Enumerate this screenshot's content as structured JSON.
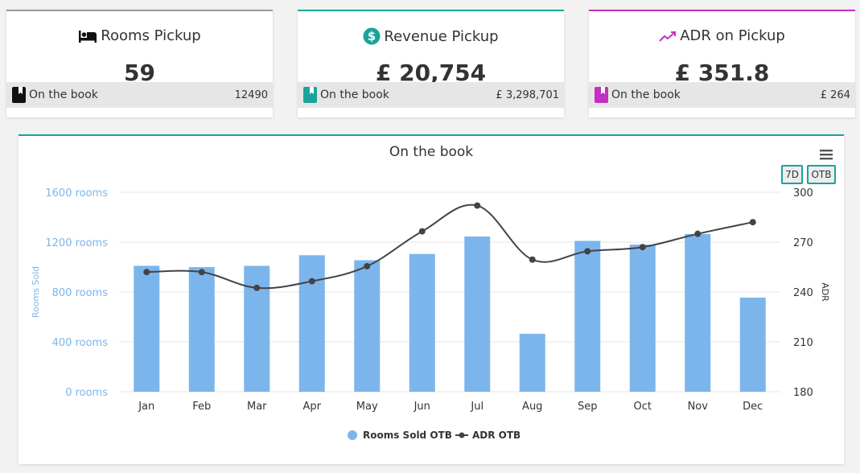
{
  "cards": [
    {
      "title": "Rooms Pickup",
      "icon": "bed-icon",
      "value": "59",
      "foot_label": "On the book",
      "foot_value": "12490",
      "accent": "#999999",
      "book_color": "#111111"
    },
    {
      "title": "Revenue Pickup",
      "icon": "dollar-circle-icon",
      "value": "£ 20,754",
      "foot_label": "On the book",
      "foot_value": "£ 3,298,701",
      "accent": "#1aa39a",
      "book_color": "#1aa39a"
    },
    {
      "title": "ADR on Pickup",
      "icon": "trend-line-icon",
      "value": "£ 351.8",
      "foot_label": "On the book",
      "foot_value": "£ 264",
      "accent": "#c42fc4",
      "book_color": "#c42fc4"
    }
  ],
  "buttons": {
    "d7": "7D",
    "otb": "OTB"
  },
  "chart_data": {
    "type": "bar",
    "title": "On the book",
    "categories": [
      "Jan",
      "Feb",
      "Mar",
      "Apr",
      "May",
      "Jun",
      "Jul",
      "Aug",
      "Sep",
      "Oct",
      "Nov",
      "Dec"
    ],
    "series": [
      {
        "name": "Rooms Sold OTB",
        "type": "bar",
        "axis": "left",
        "color": "#7cb5ec",
        "values": [
          1010,
          1000,
          1010,
          1095,
          1055,
          1105,
          1245,
          465,
          1210,
          1180,
          1265,
          755
        ]
      },
      {
        "name": "ADR OTB",
        "type": "line",
        "axis": "right",
        "color": "#434348",
        "values": [
          252,
          252,
          242.5,
          246.5,
          255.5,
          276.5,
          292,
          259.5,
          264.5,
          267,
          275,
          282
        ]
      }
    ],
    "left_axis": {
      "label": "Rooms Sold",
      "range": [
        0,
        1600
      ],
      "ticks": [
        0,
        400,
        800,
        1200,
        1600
      ],
      "tick_suffix": " rooms",
      "color": "#7cb5ec"
    },
    "right_axis": {
      "label": "ADR",
      "range": [
        180,
        300
      ],
      "ticks": [
        180,
        210,
        240,
        270,
        300
      ]
    },
    "legend": [
      "Rooms Sold OTB",
      "ADR OTB"
    ]
  }
}
